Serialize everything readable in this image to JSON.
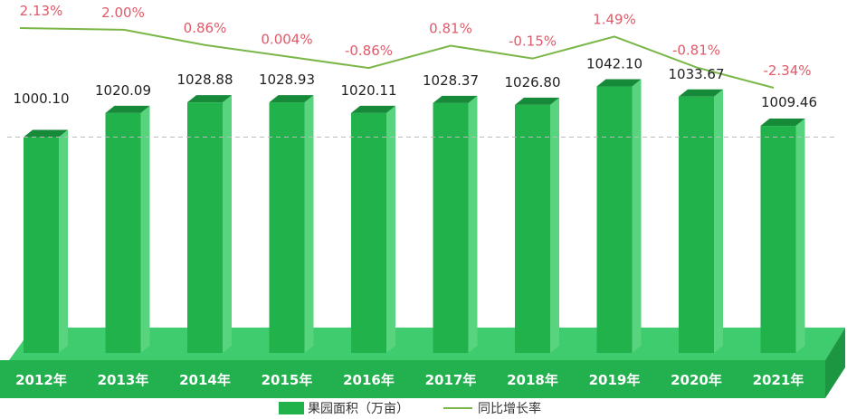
{
  "chart_data": {
    "type": "bar",
    "categories": [
      "2012年",
      "2013年",
      "2014年",
      "2015年",
      "2016年",
      "2017年",
      "2018年",
      "2019年",
      "2020年",
      "2021年"
    ],
    "series": [
      {
        "name": "果园面积（万亩）",
        "type": "bar",
        "values": [
          1000.1,
          1020.09,
          1028.88,
          1028.93,
          1020.11,
          1028.37,
          1026.8,
          1042.1,
          1033.67,
          1009.46
        ],
        "labels": [
          "1000.10",
          "1020.09",
          "1028.88",
          "1028.93",
          "1020.11",
          "1028.37",
          "1026.80",
          "1042.10",
          "1033.67",
          "1009.46"
        ]
      },
      {
        "name": "同比增长率",
        "type": "line",
        "values": [
          2.13,
          2.0,
          0.86,
          0.004,
          -0.86,
          0.81,
          -0.15,
          1.49,
          -0.81,
          -2.34
        ],
        "labels": [
          "2.13%",
          "2.00%",
          "0.86%",
          "0.004%",
          "-0.86%",
          "0.81%",
          "-0.15%",
          "1.49%",
          "-0.81%",
          "-2.34%"
        ]
      }
    ],
    "colors": {
      "bar_front": "#22b24c",
      "bar_side": "#58d47e",
      "bar_top": "#178a3a",
      "floor_top": "#3fcc6e",
      "floor_front": "#23b04f",
      "line": "#7ab648",
      "pct_label": "#e05a69",
      "value_label": "#222222",
      "reference_line": "#bbbbbb"
    },
    "legend_position": "bottom-center",
    "grid": false
  }
}
